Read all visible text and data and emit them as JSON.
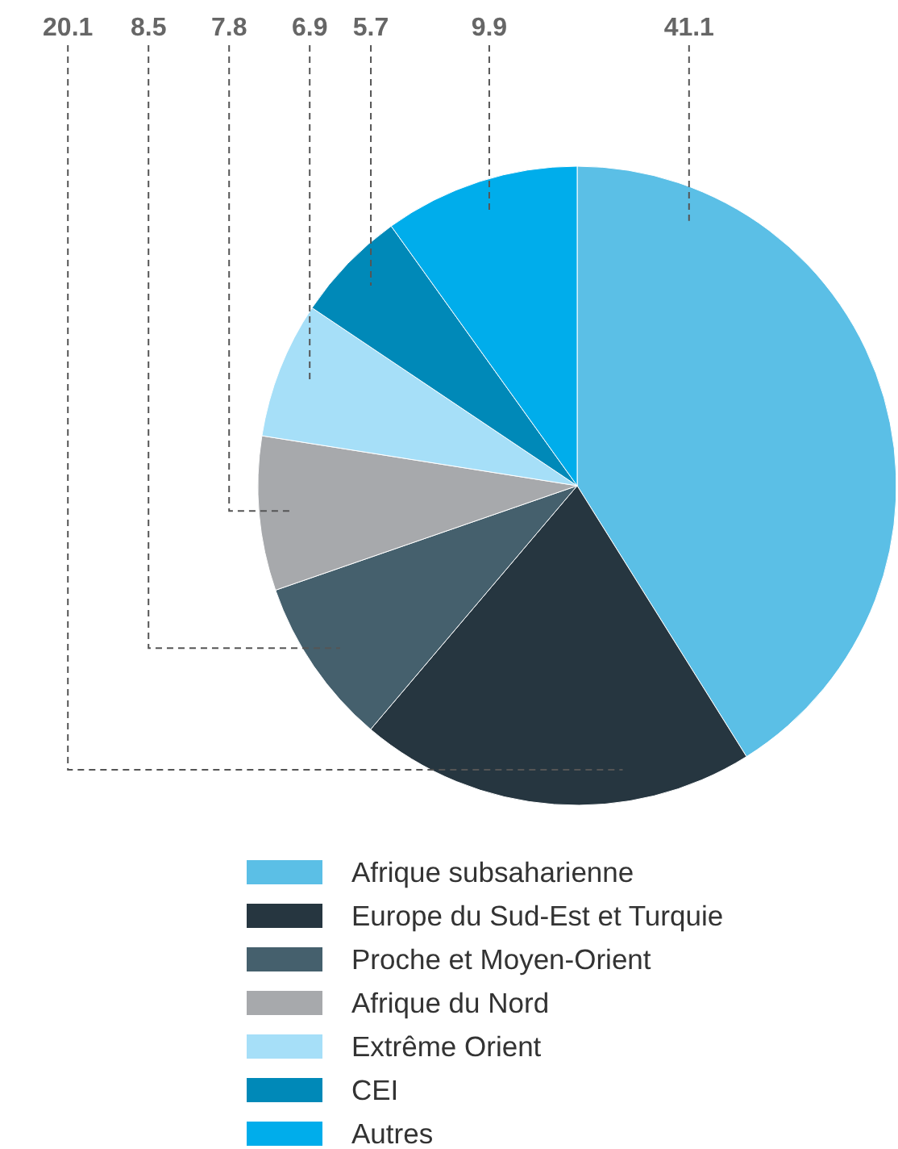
{
  "chart_data": {
    "type": "pie",
    "categories": [
      "Afrique subsaharienne",
      "Europe du Sud-Est et Turquie",
      "Proche et Moyen-Orient",
      "Afrique du Nord",
      "Extrême Orient",
      "CEI",
      "Autres"
    ],
    "values": [
      41.1,
      20.1,
      8.5,
      7.8,
      6.9,
      5.7,
      9.9
    ],
    "colors": [
      "#5bbfe6",
      "#263640",
      "#45606d",
      "#a7a9ac",
      "#a6dff8",
      "#0089b8",
      "#00adeb"
    ],
    "data_labels": true,
    "legend": "bottom"
  }
}
